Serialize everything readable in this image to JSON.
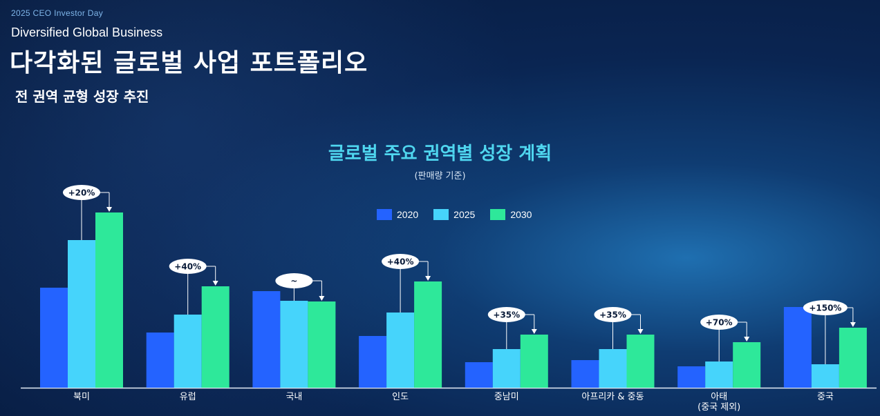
{
  "header": {
    "eyebrow": "2025 CEO Investor Day",
    "subtitle_en": "Diversified Global Business",
    "title_ko": "다각화된 글로벌 사업 포트폴리오",
    "tagline": "전 권역 균형 성장 추진"
  },
  "colors": {
    "s2020": "#2463ff",
    "s2025": "#46d4fb",
    "s2030": "#2ee89a"
  },
  "chart_data": {
    "type": "bar",
    "title": "글로벌 주요 권역별 성장 계획",
    "subtitle": "(판매량 기준)",
    "legend_position": "top-center",
    "categories": [
      "북미",
      "유럽",
      "국내",
      "인도",
      "중남미",
      "아프리카 & 중동",
      "아태\n(중국 제외)",
      "중국"
    ],
    "series": [
      {
        "name": "2020",
        "values": [
          145,
          80,
          140,
          75,
          37,
          40,
          31,
          117
        ]
      },
      {
        "name": "2025",
        "values": [
          214,
          106,
          126,
          109,
          56,
          56,
          38,
          34
        ]
      },
      {
        "name": "2030",
        "values": [
          254,
          147,
          125,
          154,
          77,
          77,
          66,
          87
        ]
      }
    ],
    "annotations": [
      "+20%",
      "+40%",
      "~",
      "+40%",
      "+35%",
      "+35%",
      "+70%",
      "+150%"
    ],
    "ylim": [
      0,
      270
    ],
    "grid": false
  }
}
